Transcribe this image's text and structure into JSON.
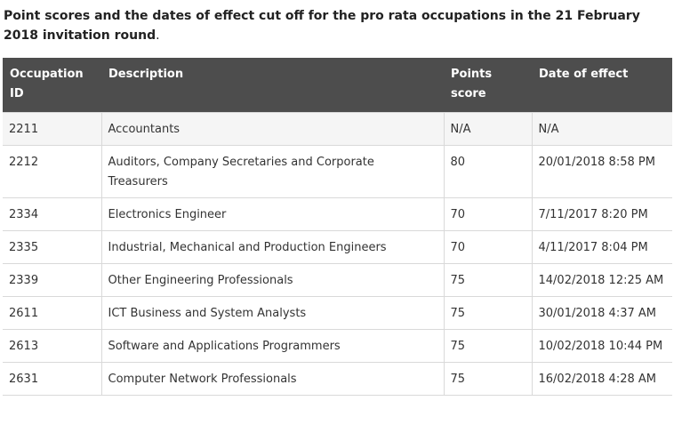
{
  "caption": {
    "text": "Point scores and the dates of effect cut off for the pro rata occupations in the 21 February 2018 invitation round",
    "trailing_punct": "."
  },
  "table": {
    "headers": [
      "Occupation ID",
      "Description",
      "Points score",
      "Date of effect"
    ],
    "rows": [
      {
        "id": "2211",
        "description": "Accountants",
        "points": "N/A",
        "date": "N/A"
      },
      {
        "id": "2212",
        "description": "Auditors, Company Secretaries and Corporate Treasurers",
        "points": "80",
        "date": "20/01/2018 8:58 PM"
      },
      {
        "id": "2334",
        "description": "Electronics Engineer",
        "points": "70",
        "date": "7/11/2017 8:20 PM"
      },
      {
        "id": "2335",
        "description": "Industrial, Mechanical and Production Engineers",
        "points": "70",
        "date": "4/11/2017  8:04 PM"
      },
      {
        "id": "2339",
        "description": "Other Engineering Professionals",
        "points": "75",
        "date": "14/02/2018  12:25 AM"
      },
      {
        "id": "2611",
        "description": "ICT Business and System Analysts",
        "points": "75",
        "date": "30/01/2018  4:37 AM"
      },
      {
        "id": "2613",
        "description": "Software and Applications Programmers",
        "points": "75",
        "date": "10/02/2018  10:44 PM"
      },
      {
        "id": "2631",
        "description": "Computer Network Professionals",
        "points": "75",
        "date": "16/02/2018 4:28 AM"
      }
    ]
  }
}
